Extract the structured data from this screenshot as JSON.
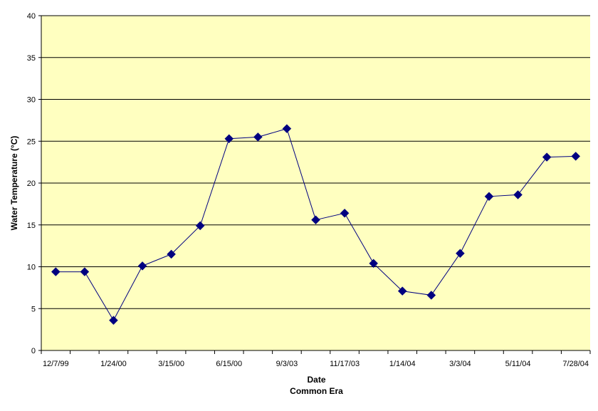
{
  "chart_data": {
    "type": "line",
    "title": "",
    "xlabel": "Date",
    "xlabel_sub": "Common Era",
    "ylabel": "Water Temperature (°C)",
    "ylim": [
      0,
      40
    ],
    "y_ticks": [
      0,
      5,
      10,
      15,
      20,
      25,
      30,
      35,
      40
    ],
    "grid": true,
    "legend": "none",
    "categories": [
      "12/7/99",
      "",
      "1/24/00",
      "",
      "3/15/00",
      "",
      "6/15/00",
      "",
      "9/3/03",
      "",
      "11/17/03",
      "",
      "1/14/04",
      "",
      "3/3/04",
      "",
      "5/11/04",
      "",
      "7/28/04"
    ],
    "x_tick_labels": [
      "12/7/99",
      "1/24/00",
      "3/15/00",
      "6/15/00",
      "9/3/03",
      "11/17/03",
      "1/14/04",
      "3/3/04",
      "5/11/04",
      "7/28/04"
    ],
    "series": [
      {
        "values": [
          9.4,
          9.4,
          3.6,
          10.1,
          11.5,
          14.9,
          25.3,
          25.5,
          26.5,
          15.6,
          16.4,
          10.4,
          7.1,
          6.6,
          11.6,
          18.4,
          18.6,
          23.1,
          23.2
        ]
      }
    ],
    "colors": {
      "plot_background": "#FFFFC0",
      "line": "#000080",
      "marker": "#000080",
      "grid": "#000000"
    }
  }
}
